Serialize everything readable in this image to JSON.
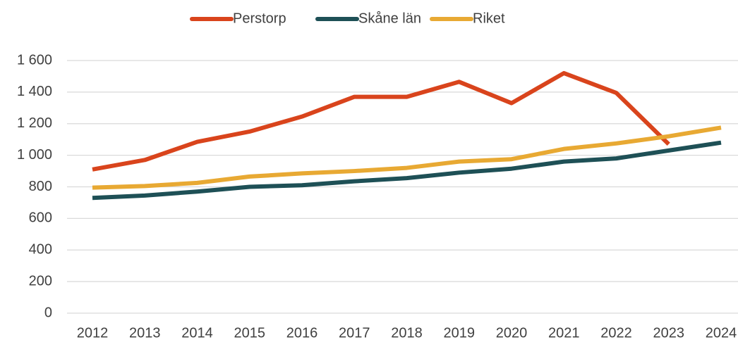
{
  "chart_data": {
    "type": "line",
    "x": [
      "2012",
      "2013",
      "2014",
      "2015",
      "2016",
      "2017",
      "2018",
      "2019",
      "2020",
      "2021",
      "2022",
      "2023",
      "2024"
    ],
    "series": [
      {
        "name": "Perstorp",
        "color": "#d9441c",
        "values": [
          910,
          970,
          1085,
          1150,
          1245,
          1370,
          1370,
          1465,
          1330,
          1520,
          1395,
          1070,
          null
        ]
      },
      {
        "name": "Skåne län",
        "color": "#1e5056",
        "values": [
          730,
          745,
          770,
          800,
          810,
          835,
          855,
          890,
          915,
          960,
          980,
          1030,
          1080
        ]
      },
      {
        "name": "Riket",
        "color": "#e8a933",
        "values": [
          795,
          805,
          825,
          865,
          885,
          900,
          920,
          960,
          975,
          1040,
          1075,
          1120,
          1175
        ]
      }
    ],
    "ylim": [
      0,
      1600
    ],
    "yticks": [
      0,
      200,
      400,
      600,
      800,
      {
        "value": 1000,
        "label": "1 000"
      },
      {
        "value": 1200,
        "label": "1 200"
      },
      {
        "value": 1400,
        "label": "1 400"
      },
      {
        "value": 1600,
        "label": "1 600"
      }
    ],
    "grid": true,
    "legend": "top"
  }
}
